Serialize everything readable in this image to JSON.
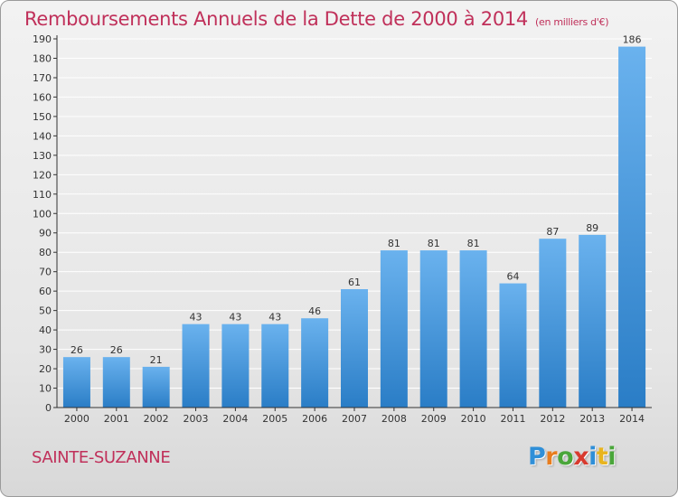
{
  "header": {
    "title": "Remboursements Annuels de la Dette de 2000 à 2014",
    "unit": "(en milliers d'€)"
  },
  "commune": "SAINTE-SUZANNE",
  "logo": {
    "text": "Proxiti",
    "letters": [
      {
        "char": "P",
        "color": "#2f8fd8"
      },
      {
        "char": "r",
        "color": "#e87d1e"
      },
      {
        "char": "o",
        "color": "#4aa63a"
      },
      {
        "char": "x",
        "color": "#d83a2e"
      },
      {
        "char": "i",
        "color": "#2f8fd8"
      },
      {
        "char": "t",
        "color": "#e8b41e"
      },
      {
        "char": "i",
        "color": "#4aa63a"
      }
    ]
  },
  "colors": {
    "title": "#c0305a",
    "bar_light": "#6ab2ee",
    "bar_dark": "#2a7dc6",
    "axis": "#333333",
    "grid": "#ffffff"
  },
  "chart_data": {
    "type": "bar",
    "title": "Remboursements Annuels de la Dette de 2000 à 2014",
    "subtitle": "(en milliers d'€)",
    "xlabel": "",
    "ylabel": "",
    "categories": [
      "2000",
      "2001",
      "2002",
      "2003",
      "2004",
      "2005",
      "2006",
      "2007",
      "2008",
      "2009",
      "2010",
      "2011",
      "2012",
      "2013",
      "2014"
    ],
    "values": [
      26,
      26,
      21,
      43,
      43,
      43,
      46,
      61,
      81,
      81,
      81,
      64,
      87,
      89,
      186
    ],
    "ylim": [
      0,
      190
    ],
    "ytick_step": 10,
    "grid": true,
    "data_labels": true,
    "legend": "none"
  }
}
